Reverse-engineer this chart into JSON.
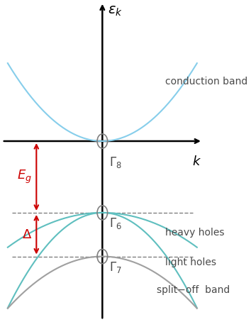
{
  "bg_color": "#ffffff",
  "axis_color": "#000000",
  "conduction_band_color": "#87ceeb",
  "heavy_light_hole_color": "#5fbfbf",
  "split_off_color": "#a0a0a0",
  "arrow_color": "#cc0000",
  "text_color": "#4a4a4a",
  "title": "",
  "xlabel": "k",
  "ylabel": "ε_k",
  "y_axis_min": -4.5,
  "y_axis_max": 3.5,
  "x_axis_min": -3.5,
  "x_axis_max": 3.5,
  "Gamma8_y": 0.0,
  "Gamma6_y": -1.8,
  "Gamma7_y": -2.9,
  "E_g_label": "E_g",
  "Delta_label": "Δ",
  "conduction_band_label": "conduction band",
  "heavy_holes_label": "heavy holes",
  "light_holes_label": "light holes",
  "split_off_label": "split−off  band",
  "Gamma8_label": "Γ_8",
  "Gamma6_label": "Γ_6",
  "Gamma7_label": "Γ_7"
}
